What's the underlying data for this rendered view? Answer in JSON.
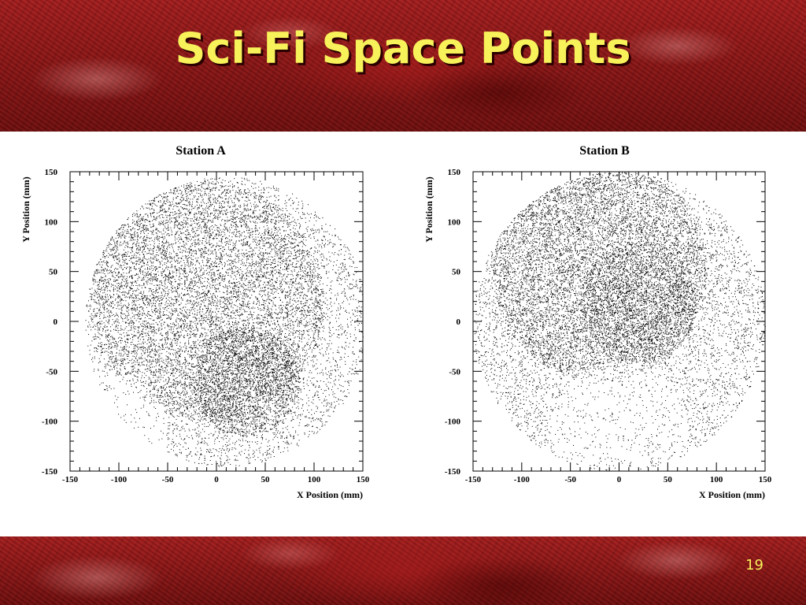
{
  "slide": {
    "title": "Sci-Fi Space Points",
    "page_number": "19"
  },
  "chart_data": [
    {
      "type": "scatter",
      "title": "Station A",
      "xlabel": "X Position (mm)",
      "ylabel": "Y Position (mm)",
      "xlim": [
        -150,
        150
      ],
      "ylim": [
        -150,
        150
      ],
      "xticks": [
        -150,
        -100,
        -50,
        0,
        50,
        100,
        150
      ],
      "yticks": [
        -150,
        -100,
        -50,
        0,
        50,
        100,
        150
      ],
      "grid": false,
      "point_color": "#000000",
      "distribution": {
        "center": [
          10,
          0
        ],
        "radius": 145,
        "dense_region": [
          {
            "cx": -10,
            "cy": 20,
            "r": 120,
            "weight": 0.45
          },
          {
            "cx": 30,
            "cy": -60,
            "r": 55,
            "weight": 0.15
          }
        ],
        "sparse_region": [
          {
            "cx": -110,
            "cy": -110,
            "r": 60
          }
        ]
      }
    },
    {
      "type": "scatter",
      "title": "Station B",
      "xlabel": "X Position (mm)",
      "ylabel": "Y Position (mm)",
      "xlim": [
        -150,
        150
      ],
      "ylim": [
        -150,
        150
      ],
      "xticks": [
        -150,
        -100,
        -50,
        0,
        50,
        100,
        150
      ],
      "yticks": [
        -150,
        -100,
        -50,
        0,
        50,
        100,
        150
      ],
      "grid": false,
      "point_color": "#000000",
      "distribution": {
        "center": [
          0,
          0
        ],
        "radius": 150,
        "dense_region": [
          {
            "cx": -20,
            "cy": 50,
            "r": 110,
            "weight": 0.45
          },
          {
            "cx": 20,
            "cy": 20,
            "r": 60,
            "weight": 0.1
          }
        ],
        "sparse_region": [
          {
            "cx": 0,
            "cy": -110,
            "r": 70
          }
        ]
      }
    }
  ]
}
